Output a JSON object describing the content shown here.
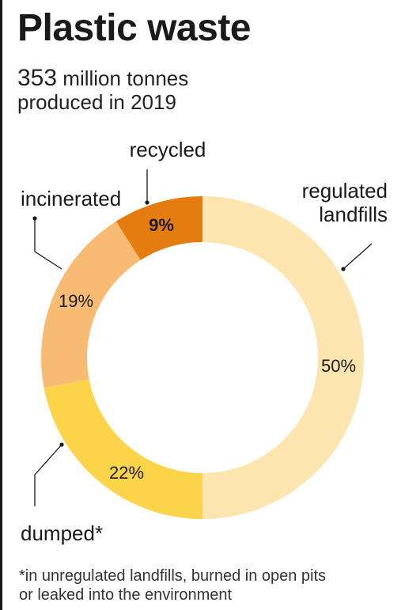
{
  "title": "Plastic waste",
  "subtitle": {
    "amount": "353",
    "line1_rest": " million tonnes",
    "line2": "produced in 2019"
  },
  "chart_data": {
    "type": "pie",
    "variant": "donut",
    "slices": [
      {
        "label": "regulated landfills",
        "label_lines": [
          "regulated",
          "landfills"
        ],
        "value": 50,
        "value_label": "50%",
        "color": "#fde5b0"
      },
      {
        "label": "dumped*",
        "label_lines": [
          "dumped*"
        ],
        "value": 22,
        "value_label": "22%",
        "color": "#fcd44a"
      },
      {
        "label": "incinerated",
        "label_lines": [
          "incinerated"
        ],
        "value": 19,
        "value_label": "19%",
        "color": "#f8bb74"
      },
      {
        "label": "recycled",
        "label_lines": [
          "recycled"
        ],
        "value": 9,
        "value_label": "9%",
        "color": "#e57c0f"
      }
    ]
  },
  "footnote": {
    "line1": "*in unregulated landfills, burned in open pits",
    "line2": "or leaked into the environment"
  }
}
